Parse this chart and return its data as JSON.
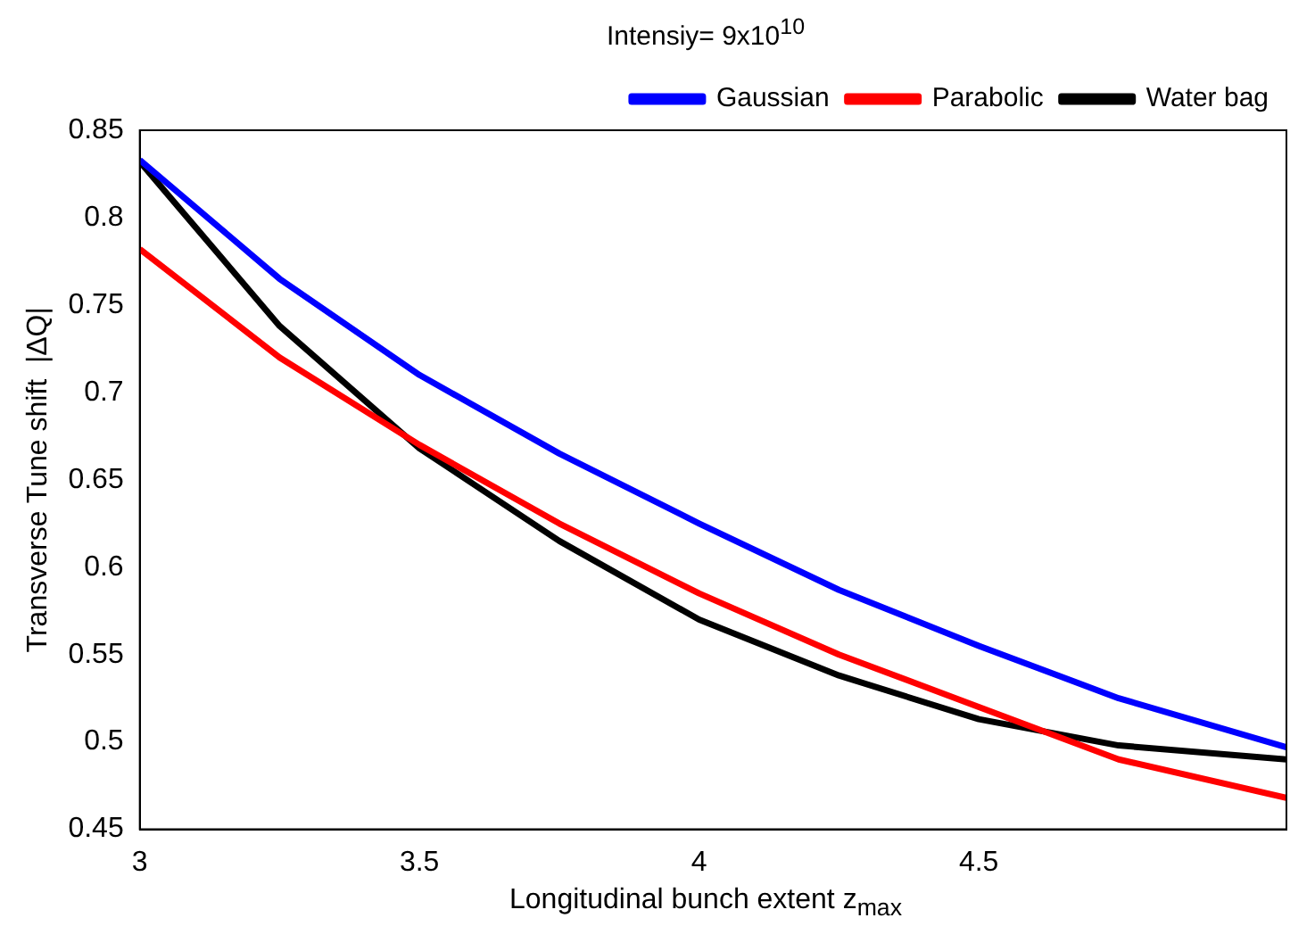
{
  "chart_data": {
    "type": "line",
    "title": "Intensiy= 9x10$^{10}$",
    "xlabel": "Longitudinal bunch extent z$_{max}$",
    "ylabel": "Transverse Tune shift  |ΔQ|",
    "x": [
      3,
      3.25,
      3.5,
      3.75,
      4,
      4.25,
      4.5,
      4.75,
      5.05
    ],
    "series": [
      {
        "name": "Gaussian",
        "color": "#0000ff",
        "values": [
          0.833,
          0.765,
          0.71,
          0.665,
          0.625,
          0.587,
          0.555,
          0.525,
          0.497
        ]
      },
      {
        "name": "Parabolic",
        "color": "#ff0000",
        "values": [
          0.782,
          0.72,
          0.67,
          0.625,
          0.585,
          0.55,
          0.52,
          0.49,
          0.468
        ]
      },
      {
        "name": "Water bag",
        "color": "#000000",
        "values": [
          0.832,
          0.738,
          0.668,
          0.615,
          0.57,
          0.538,
          0.513,
          0.498,
          0.49
        ]
      }
    ],
    "xlim": [
      3,
      5.05
    ],
    "xticks": [
      3,
      3.5,
      4,
      4.5
    ],
    "ylim": [
      0.45,
      0.85
    ],
    "yticks": [
      0.45,
      0.5,
      0.55,
      0.6,
      0.65,
      0.7,
      0.75,
      0.8,
      0.85
    ],
    "grid": false,
    "legend": "top right",
    "marker": "none",
    "line_style": "solid"
  }
}
